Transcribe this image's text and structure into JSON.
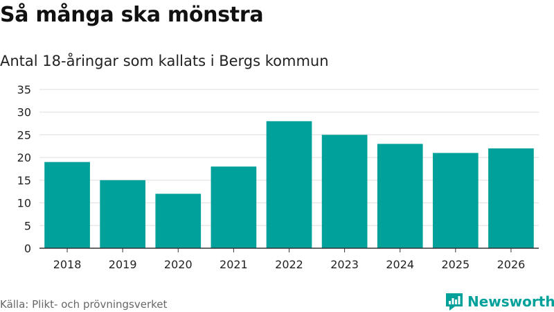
{
  "header": {
    "title": "Så många ska mönstra",
    "subtitle": "Antal 18-åringar som kallats i Bergs kommun"
  },
  "footer": {
    "source": "Källa: Plikt- och prövningsverket",
    "brand": "Newsworthy"
  },
  "colors": {
    "bar": "#00A19A",
    "grid": "#DDDDDD",
    "axis": "#333333",
    "brand": "#00A19A",
    "text": "#222222"
  },
  "icons": {
    "brand_logo": "newsworthy-logo-icon"
  },
  "chart_data": {
    "type": "bar",
    "title": "Så många ska mönstra",
    "subtitle": "Antal 18-åringar som kallats i Bergs kommun",
    "xlabel": "",
    "ylabel": "",
    "categories": [
      "2018",
      "2019",
      "2020",
      "2021",
      "2022",
      "2023",
      "2024",
      "2025",
      "2026"
    ],
    "values": [
      19,
      15,
      12,
      18,
      28,
      25,
      23,
      21,
      22
    ],
    "ylim": [
      0,
      35
    ],
    "yticks": [
      0,
      5,
      10,
      15,
      20,
      25,
      30,
      35
    ],
    "grid": true,
    "legend": "none"
  }
}
